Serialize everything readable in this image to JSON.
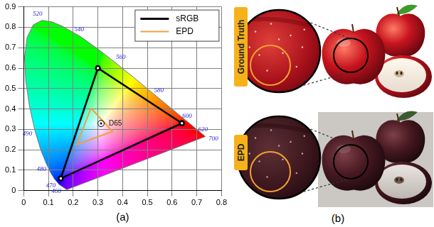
{
  "chart_data": {
    "type": "line",
    "xlabel": "(a)",
    "xlim": [
      0,
      0.8
    ],
    "xticks": [
      0,
      0.1,
      0.2,
      0.3,
      0.4,
      0.5,
      0.6,
      0.7,
      0.8
    ],
    "ylim": [
      0,
      0.9
    ],
    "yticks": [
      0,
      0.1,
      0.2,
      0.3,
      0.4,
      0.5,
      0.6,
      0.7,
      0.8,
      0.9
    ],
    "grid": true,
    "legend": "upper right",
    "series": [
      {
        "name": "sRGB",
        "color": "#000000",
        "marker": "circle",
        "x": [
          0.64,
          0.3,
          0.15,
          0.64
        ],
        "y": [
          0.33,
          0.6,
          0.06,
          0.33
        ]
      },
      {
        "name": "EPD",
        "color": "#f0a040",
        "x": [
          0.272,
          0.36,
          0.215,
          0.272
        ],
        "y": [
          0.404,
          0.29,
          0.226,
          0.404
        ]
      }
    ],
    "spectral_locus": {
      "x": [
        0.1741,
        0.144,
        0.1241,
        0.1096,
        0.0913,
        0.0687,
        0.0454,
        0.0235,
        0.0082,
        0.0039,
        0.0139,
        0.0389,
        0.0743,
        0.1142,
        0.1547,
        0.2296,
        0.3016,
        0.3731,
        0.4441,
        0.5125,
        0.5752,
        0.627,
        0.6658,
        0.6915,
        0.719,
        0.7347
      ],
      "y": [
        0.005,
        0.0297,
        0.0578,
        0.0868,
        0.1327,
        0.2007,
        0.295,
        0.4127,
        0.5384,
        0.6548,
        0.7502,
        0.812,
        0.8338,
        0.8262,
        0.8059,
        0.7543,
        0.6923,
        0.6245,
        0.5547,
        0.4866,
        0.4242,
        0.3725,
        0.334,
        0.3083,
        0.2809,
        0.2653
      ],
      "wavelengths": [
        null,
        460,
        470,
        null,
        480,
        null,
        490,
        null,
        null,
        null,
        null,
        null,
        520,
        null,
        null,
        540,
        null,
        560,
        null,
        580,
        null,
        600,
        null,
        620,
        null,
        700
      ]
    },
    "annotations": [
      {
        "text": "D65",
        "x": 0.3127,
        "y": 0.329
      }
    ]
  },
  "image_panel": {
    "caption": "(b)",
    "rows": [
      "Ground Truth",
      "EPD"
    ]
  }
}
